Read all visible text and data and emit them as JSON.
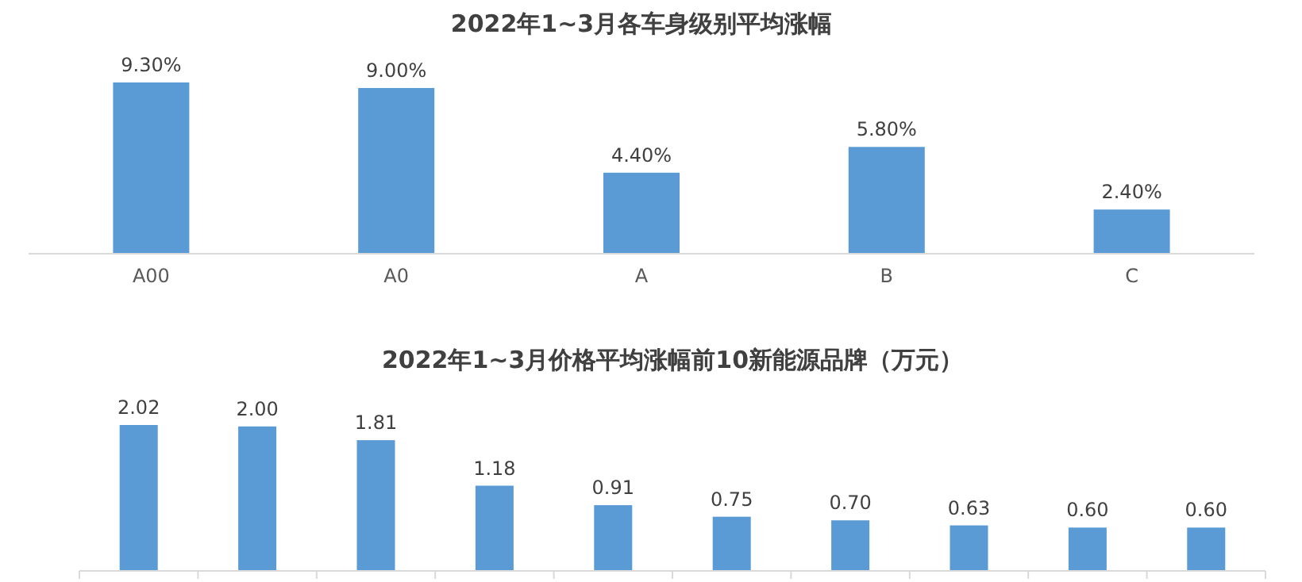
{
  "chart_data": [
    {
      "type": "bar",
      "title": "2022年1~3月各车身级别平均涨幅",
      "categories": [
        "A00",
        "A0",
        "A",
        "B",
        "C"
      ],
      "values": [
        9.3,
        9.0,
        4.4,
        5.8,
        2.4
      ],
      "value_labels": [
        "9.30%",
        "9.00%",
        "4.40%",
        "5.80%",
        "2.40%"
      ],
      "color": "#5b9bd5"
    },
    {
      "type": "bar",
      "title": "2022年1~3月价格平均涨幅前10新能源品牌（万元）",
      "categories": [
        null,
        null,
        null,
        null,
        null,
        null,
        null,
        null,
        null,
        null
      ],
      "values": [
        2.02,
        2.0,
        1.81,
        1.18,
        0.91,
        0.75,
        0.7,
        0.63,
        0.6,
        0.6
      ],
      "value_labels": [
        "2.02",
        "2.00",
        "1.81",
        "1.18",
        "0.91",
        "0.75",
        "0.70",
        "0.63",
        "0.60",
        "0.60"
      ],
      "color": "#5b9bd5"
    }
  ]
}
